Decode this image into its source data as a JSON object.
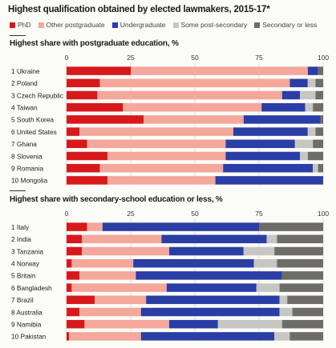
{
  "title": "Highest qualification obtained by elected lawmakers, 2015-17*",
  "legend": [
    {
      "label": "PhD",
      "color": "#d7191c"
    },
    {
      "label": "Other postgraduate",
      "color": "#f4a79b"
    },
    {
      "label": "Undergraduate",
      "color": "#2a3ea6"
    },
    {
      "label": "Some post-secondary",
      "color": "#c6c7c2"
    },
    {
      "label": "Secondary or less",
      "color": "#6e6c66"
    }
  ],
  "chart_data": [
    {
      "type": "bar",
      "orientation": "horizontal",
      "stacked": true,
      "title": "Highest share with postgraduate education, %",
      "xlim": [
        0,
        100
      ],
      "xticks": [
        "0",
        "25",
        "50",
        "75",
        "100"
      ],
      "categories": [
        "1 Ukraine",
        "2 Poland",
        "3 Czech Republic",
        "4 Taiwan",
        "5 South Korea",
        "6 United States",
        "7 Ghana",
        "8 Slovenia",
        "9 Romania",
        "10 Mongolia"
      ],
      "series": [
        {
          "name": "PhD",
          "values": [
            25,
            13,
            12,
            22,
            30,
            5,
            8,
            16,
            13,
            16
          ]
        },
        {
          "name": "Other postgraduate",
          "values": [
            69,
            74,
            72,
            54,
            39,
            60,
            54,
            46,
            48,
            42
          ]
        },
        {
          "name": "Undergraduate",
          "values": [
            4,
            7,
            7,
            17,
            30,
            29,
            27,
            29,
            35,
            42
          ]
        },
        {
          "name": "Some post-secondary",
          "values": [
            0,
            3,
            6,
            3,
            0,
            3,
            7,
            3,
            2,
            0
          ]
        },
        {
          "name": "Secondary or less",
          "values": [
            2,
            3,
            3,
            4,
            1,
            3,
            4,
            6,
            2,
            0
          ]
        }
      ]
    },
    {
      "type": "bar",
      "orientation": "horizontal",
      "stacked": true,
      "title": "Highest share with secondary-school education or less, %",
      "xlim": [
        0,
        100
      ],
      "xticks": [
        "0",
        "25",
        "50",
        "75",
        "100"
      ],
      "categories": [
        "1 Italy",
        "2 India",
        "3 Tanzania",
        "4 Norway",
        "5 Britain",
        "6 Bangladesh",
        "7 Brazil",
        "8 Australia",
        "9 Namibia",
        "10 Pakistan"
      ],
      "series": [
        {
          "name": "PhD",
          "values": [
            8,
            6,
            6,
            2,
            5,
            2,
            11,
            5,
            7,
            1
          ]
        },
        {
          "name": "Other postgraduate",
          "values": [
            6,
            31,
            34,
            24,
            22,
            37,
            20,
            24,
            33,
            28
          ]
        },
        {
          "name": "Undergraduate",
          "values": [
            61,
            41,
            29,
            47,
            57,
            35,
            52,
            54,
            19,
            52
          ]
        },
        {
          "name": "Some post-secondary",
          "values": [
            0,
            4,
            12,
            9,
            0,
            9,
            3,
            5,
            25,
            6
          ]
        },
        {
          "name": "Secondary or less",
          "values": [
            25,
            18,
            19,
            18,
            16,
            17,
            14,
            12,
            16,
            13
          ]
        }
      ]
    }
  ]
}
